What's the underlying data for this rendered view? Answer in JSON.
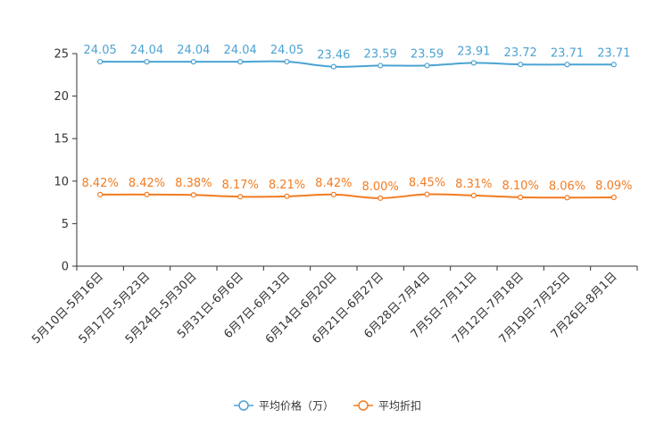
{
  "chart_data": {
    "type": "line",
    "categories": [
      "5月10日-5月16日",
      "5月17日-5月23日",
      "5月24日-5月30日",
      "5月31日-6月6日",
      "6月7日-6月13日",
      "6月14日-6月20日",
      "6月21日-6月27日",
      "6月28日-7月4日",
      "7月5日-7月11日",
      "7月12日-7月18日",
      "7月19日-7月25日",
      "7月26日-8月1日"
    ],
    "ylim": [
      0,
      25
    ],
    "yticks": [
      0,
      5,
      10,
      15,
      20,
      25
    ],
    "ytick_labels": [
      "0",
      "5",
      "10",
      "15",
      "20",
      "25"
    ],
    "title": "",
    "xlabel": "",
    "ylabel": "",
    "legend_position": "bottom",
    "series": [
      {
        "name": "平均价格（万）",
        "color": "#4ba3d3",
        "values": [
          24.05,
          24.04,
          24.04,
          24.04,
          24.05,
          23.46,
          23.59,
          23.59,
          23.91,
          23.72,
          23.71,
          23.71
        ],
        "labels": [
          "24.05",
          "24.04",
          "24.04",
          "24.04",
          "24.05",
          "23.46",
          "23.59",
          "23.59",
          "23.91",
          "23.72",
          "23.71",
          "23.71"
        ]
      },
      {
        "name": "平均折扣",
        "color": "#f27c22",
        "values": [
          8.42,
          8.42,
          8.38,
          8.17,
          8.21,
          8.42,
          8.0,
          8.45,
          8.31,
          8.1,
          8.06,
          8.09
        ],
        "labels": [
          "8.42%",
          "8.42%",
          "8.38%",
          "8.17%",
          "8.21%",
          "8.42%",
          "8.00%",
          "8.45%",
          "8.31%",
          "8.10%",
          "8.06%",
          "8.09%"
        ]
      }
    ]
  }
}
